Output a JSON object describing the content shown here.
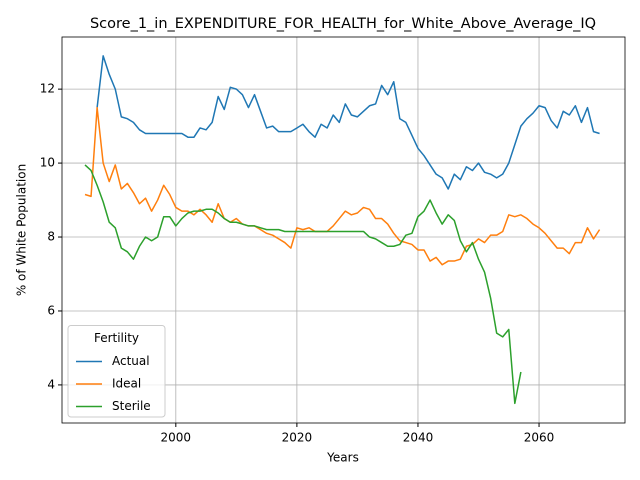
{
  "chart_data": {
    "type": "line",
    "title": "Score_1_in_EXPENDITURE_FOR_HEALTH_for_White_Above_Average_IQ",
    "xlabel": "Years",
    "ylabel": "% of White Population",
    "legend_title": "Fertility",
    "legend": "lower left",
    "grid": true,
    "xlim": [
      1981.2,
      2074.2
    ],
    "ylim": [
      2.97,
      13.41
    ],
    "xticks": [
      2000,
      2020,
      2040,
      2060
    ],
    "yticks": [
      4,
      6,
      8,
      10,
      12
    ],
    "x": [
      1985,
      1986,
      1987,
      1988,
      1989,
      1990,
      1991,
      1992,
      1993,
      1994,
      1995,
      1996,
      1997,
      1998,
      1999,
      2000,
      2001,
      2002,
      2003,
      2004,
      2005,
      2006,
      2007,
      2008,
      2009,
      2010,
      2011,
      2012,
      2013,
      2014,
      2015,
      2016,
      2017,
      2018,
      2019,
      2020,
      2021,
      2022,
      2023,
      2024,
      2025,
      2026,
      2027,
      2028,
      2029,
      2030,
      2031,
      2032,
      2033,
      2034,
      2035,
      2036,
      2037,
      2038,
      2039,
      2040,
      2041,
      2042,
      2043,
      2044,
      2045,
      2046,
      2047,
      2048,
      2049,
      2050,
      2051,
      2052,
      2053,
      2054,
      2055,
      2056,
      2057,
      2058,
      2059,
      2060,
      2061,
      2062,
      2063,
      2064,
      2065,
      2066,
      2067,
      2068,
      2069,
      2070
    ],
    "series": [
      {
        "name": "Actual",
        "color": "#1f77b4",
        "values": [
          null,
          null,
          11.5,
          12.9,
          12.4,
          12.0,
          11.25,
          11.2,
          11.1,
          10.9,
          10.8,
          10.8,
          10.8,
          10.8,
          10.8,
          10.8,
          10.8,
          10.7,
          10.7,
          10.95,
          10.9,
          11.1,
          11.8,
          11.45,
          12.05,
          12.0,
          11.85,
          11.5,
          11.85,
          11.4,
          10.95,
          11.0,
          10.85,
          10.85,
          10.85,
          10.95,
          11.05,
          10.85,
          10.7,
          11.05,
          10.95,
          11.3,
          11.1,
          11.6,
          11.3,
          11.25,
          11.4,
          11.55,
          11.6,
          12.1,
          11.85,
          12.2,
          11.2,
          11.1,
          10.75,
          10.4,
          10.2,
          9.95,
          9.7,
          9.6,
          9.3,
          9.7,
          9.55,
          9.9,
          9.8,
          10.0,
          9.75,
          9.7,
          9.6,
          9.7,
          10.0,
          10.5,
          11.0,
          11.2,
          11.35,
          11.55,
          11.5,
          11.15,
          10.95,
          11.4,
          11.3,
          11.55,
          11.1,
          11.5,
          10.85,
          10.8
        ]
      },
      {
        "name": "Ideal",
        "color": "#ff7f0e",
        "values": [
          9.15,
          9.1,
          11.5,
          10.0,
          9.5,
          9.95,
          9.3,
          9.45,
          9.2,
          8.9,
          9.05,
          8.7,
          9.0,
          9.4,
          9.15,
          8.8,
          8.7,
          8.7,
          8.6,
          8.75,
          8.6,
          8.4,
          8.9,
          8.5,
          8.4,
          8.5,
          8.35,
          8.3,
          8.3,
          8.2,
          8.1,
          8.05,
          7.95,
          7.85,
          7.7,
          8.25,
          8.2,
          8.25,
          8.15,
          8.15,
          8.15,
          8.3,
          8.5,
          8.7,
          8.6,
          8.65,
          8.8,
          8.75,
          8.5,
          8.5,
          8.35,
          8.1,
          7.9,
          7.85,
          7.8,
          7.65,
          7.65,
          7.35,
          7.45,
          7.25,
          7.35,
          7.35,
          7.4,
          7.75,
          7.8,
          7.95,
          7.85,
          8.05,
          8.05,
          8.15,
          8.6,
          8.55,
          8.6,
          8.5,
          8.35,
          8.25,
          8.1,
          7.9,
          7.7,
          7.7,
          7.55,
          7.85,
          7.85,
          8.25,
          7.95,
          8.2
        ]
      },
      {
        "name": "Sterile",
        "color": "#2ca02c",
        "values": [
          9.95,
          9.8,
          9.4,
          8.95,
          8.4,
          8.25,
          7.7,
          7.6,
          7.4,
          7.75,
          8.0,
          7.9,
          8.0,
          8.55,
          8.55,
          8.3,
          8.5,
          8.65,
          8.7,
          8.7,
          8.75,
          8.75,
          8.65,
          8.5,
          8.4,
          8.4,
          8.35,
          8.3,
          8.3,
          8.25,
          8.2,
          8.2,
          8.2,
          8.15,
          8.15,
          8.15,
          8.15,
          8.15,
          8.15,
          8.15,
          8.15,
          8.15,
          8.15,
          8.15,
          8.15,
          8.15,
          8.15,
          8.0,
          7.95,
          7.85,
          7.75,
          7.75,
          7.8,
          8.05,
          8.1,
          8.55,
          8.7,
          9.0,
          8.65,
          8.35,
          8.6,
          8.45,
          7.9,
          7.6,
          7.85,
          7.4,
          7.05,
          6.35,
          5.4,
          5.3,
          5.5,
          3.5,
          4.35,
          null,
          null,
          null,
          null,
          null,
          null,
          null,
          null,
          null,
          null,
          null,
          null,
          null
        ]
      }
    ]
  }
}
